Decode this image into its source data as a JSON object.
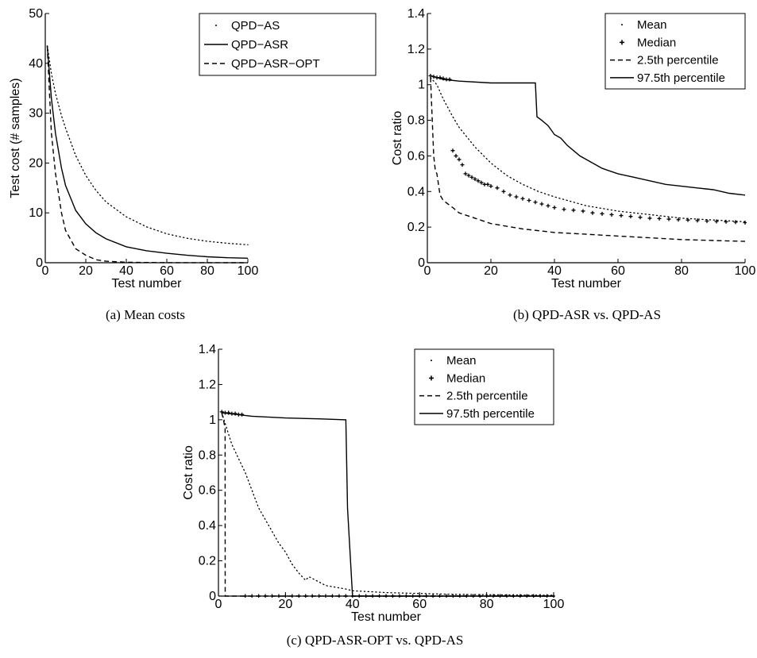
{
  "chart_data": [
    {
      "type": "line",
      "caption": "(a) Mean costs",
      "xlabel": "Test number",
      "ylabel": "Test cost (# samples)",
      "xlim": [
        0,
        100
      ],
      "ylim": [
        0,
        50
      ],
      "xticks": [
        0,
        20,
        40,
        60,
        80,
        100
      ],
      "yticks": [
        0,
        10,
        20,
        30,
        40,
        50
      ],
      "grid": false,
      "legend_position": "top-right",
      "x": [
        1,
        3,
        5,
        8,
        10,
        15,
        20,
        25,
        30,
        40,
        50,
        60,
        70,
        80,
        90,
        100
      ],
      "series": [
        {
          "name": "QPD−AS",
          "style": "dotted",
          "values": [
            43.5,
            38,
            34,
            29.5,
            27,
            21.5,
            17.5,
            14.5,
            12.2,
            9.2,
            7.2,
            5.8,
            4.9,
            4.3,
            3.9,
            3.6
          ]
        },
        {
          "name": "QPD−ASR",
          "style": "solid",
          "values": [
            43.5,
            33,
            26,
            19,
            15.5,
            10.5,
            7.8,
            6,
            4.8,
            3.2,
            2.4,
            1.9,
            1.5,
            1.2,
            1,
            0.9
          ]
        },
        {
          "name": "QPD−ASR−OPT",
          "style": "dashed",
          "values": [
            43.5,
            26,
            18,
            10,
            6.5,
            2.8,
            1.5,
            0.6,
            0.3,
            0.1,
            0.05,
            0.02,
            0.01,
            0.01,
            0.0,
            0.0
          ]
        }
      ]
    },
    {
      "type": "line",
      "caption": "(b) QPD-ASR vs. QPD-AS",
      "xlabel": "Test number",
      "ylabel": "Cost ratio",
      "xlim": [
        0,
        100
      ],
      "ylim": [
        0,
        1.4
      ],
      "xticks": [
        0,
        20,
        40,
        60,
        80,
        100
      ],
      "yticks": [
        0,
        0.2,
        0.4,
        0.6,
        0.8,
        1,
        1.2,
        1.4
      ],
      "grid": false,
      "legend_position": "top-right",
      "series": [
        {
          "name": "Mean",
          "style": "dotted",
          "x": [
            1,
            3,
            5,
            8,
            10,
            15,
            20,
            25,
            30,
            35,
            40,
            50,
            60,
            70,
            80,
            90,
            100
          ],
          "values": [
            1.04,
            1.0,
            0.92,
            0.82,
            0.76,
            0.65,
            0.56,
            0.49,
            0.44,
            0.4,
            0.37,
            0.32,
            0.29,
            0.27,
            0.25,
            0.24,
            0.23
          ]
        },
        {
          "name": "Median",
          "style": "plus-markers",
          "x": [
            1,
            2,
            3,
            4,
            5,
            6,
            7,
            8,
            9,
            10,
            11,
            12,
            13,
            14,
            15,
            16,
            17,
            18,
            19,
            20,
            22,
            24,
            26,
            28,
            30,
            32,
            34,
            36,
            38,
            40,
            43,
            46,
            49,
            52,
            55,
            58,
            61,
            64,
            67,
            70,
            73,
            76,
            79,
            82,
            85,
            88,
            91,
            94,
            97,
            100
          ],
          "values": [
            1.05,
            1.045,
            1.04,
            1.04,
            1.035,
            1.03,
            1.03,
            0.63,
            0.6,
            0.58,
            0.55,
            0.5,
            0.49,
            0.48,
            0.47,
            0.46,
            0.45,
            0.44,
            0.44,
            0.43,
            0.42,
            0.4,
            0.38,
            0.37,
            0.36,
            0.35,
            0.34,
            0.33,
            0.32,
            0.31,
            0.3,
            0.295,
            0.29,
            0.28,
            0.275,
            0.27,
            0.265,
            0.26,
            0.255,
            0.25,
            0.248,
            0.245,
            0.242,
            0.24,
            0.237,
            0.234,
            0.232,
            0.23,
            0.228,
            0.225
          ]
        },
        {
          "name": "2.5th percentile",
          "style": "dashed",
          "x": [
            1,
            2,
            2.5,
            3,
            4,
            5,
            8,
            10,
            15,
            20,
            30,
            40,
            50,
            60,
            70,
            80,
            90,
            100
          ],
          "values": [
            1.04,
            0.6,
            0.52,
            0.5,
            0.38,
            0.35,
            0.31,
            0.28,
            0.25,
            0.22,
            0.19,
            0.17,
            0.16,
            0.15,
            0.14,
            0.13,
            0.125,
            0.12
          ]
        },
        {
          "name": "97.5th percentile",
          "style": "solid",
          "x": [
            1,
            5,
            10,
            20,
            30,
            34,
            34.5,
            36,
            38,
            40,
            42,
            44,
            46,
            48,
            50,
            55,
            60,
            65,
            70,
            75,
            80,
            85,
            90,
            95,
            100
          ],
          "values": [
            1.05,
            1.03,
            1.02,
            1.01,
            1.01,
            1.01,
            0.82,
            0.8,
            0.77,
            0.72,
            0.7,
            0.66,
            0.63,
            0.6,
            0.58,
            0.53,
            0.5,
            0.48,
            0.46,
            0.44,
            0.43,
            0.42,
            0.41,
            0.39,
            0.38
          ]
        }
      ]
    },
    {
      "type": "line",
      "caption": "(c) QPD-ASR-OPT vs. QPD-AS",
      "xlabel": "Test number",
      "ylabel": "Cost ratio",
      "xlim": [
        0,
        100
      ],
      "ylim": [
        0,
        1.4
      ],
      "xticks": [
        0,
        20,
        40,
        60,
        80,
        100
      ],
      "yticks": [
        0,
        0.2,
        0.4,
        0.6,
        0.8,
        1,
        1.2,
        1.4
      ],
      "grid": false,
      "legend_position": "top-right",
      "series": [
        {
          "name": "Mean",
          "style": "dotted",
          "x": [
            1,
            2,
            4,
            6,
            8,
            10,
            12,
            15,
            18,
            20,
            22,
            24,
            26,
            27,
            28,
            30,
            32,
            35,
            38,
            40,
            45,
            50,
            60,
            70,
            80,
            90,
            100
          ],
          "values": [
            1.04,
            0.98,
            0.86,
            0.78,
            0.7,
            0.6,
            0.5,
            0.4,
            0.3,
            0.25,
            0.18,
            0.13,
            0.09,
            0.11,
            0.1,
            0.08,
            0.06,
            0.05,
            0.04,
            0.03,
            0.025,
            0.02,
            0.015,
            0.01,
            0.008,
            0.006,
            0.005
          ]
        },
        {
          "name": "Median",
          "style": "plus-markers",
          "x": [
            1,
            2,
            3,
            4,
            5,
            6,
            7,
            8,
            10,
            12,
            14,
            16,
            18,
            20,
            22,
            24,
            26,
            28,
            30,
            32,
            34,
            36,
            38,
            40,
            42,
            44,
            46,
            48,
            50,
            52,
            54,
            56,
            58,
            60,
            62,
            64,
            66,
            68,
            70,
            72,
            74,
            76,
            78,
            80,
            82,
            84,
            86,
            88,
            90,
            92,
            94,
            96,
            98,
            100
          ],
          "values": [
            1.045,
            1.04,
            1.04,
            1.035,
            1.035,
            1.03,
            1.03,
            0,
            0,
            0,
            0,
            0,
            0,
            0,
            0,
            0,
            0,
            0,
            0,
            0,
            0,
            0,
            0,
            0,
            0,
            0,
            0,
            0,
            0,
            0,
            0,
            0,
            0,
            0,
            0,
            0,
            0,
            0,
            0,
            0,
            0,
            0,
            0,
            0,
            0,
            0,
            0,
            0,
            0,
            0,
            0,
            0,
            0,
            0
          ]
        },
        {
          "name": "2.5th percentile",
          "style": "dashed",
          "x": [
            1,
            1.5,
            2,
            2.01,
            100
          ],
          "values": [
            1.04,
            1.0,
            0.95,
            0,
            0
          ]
        },
        {
          "name": "97.5th percentile",
          "style": "solid",
          "x": [
            1,
            10,
            20,
            30,
            38,
            38.5,
            40,
            100
          ],
          "values": [
            1.04,
            1.02,
            1.01,
            1.005,
            1.0,
            0.5,
            0,
            0
          ]
        }
      ]
    }
  ]
}
